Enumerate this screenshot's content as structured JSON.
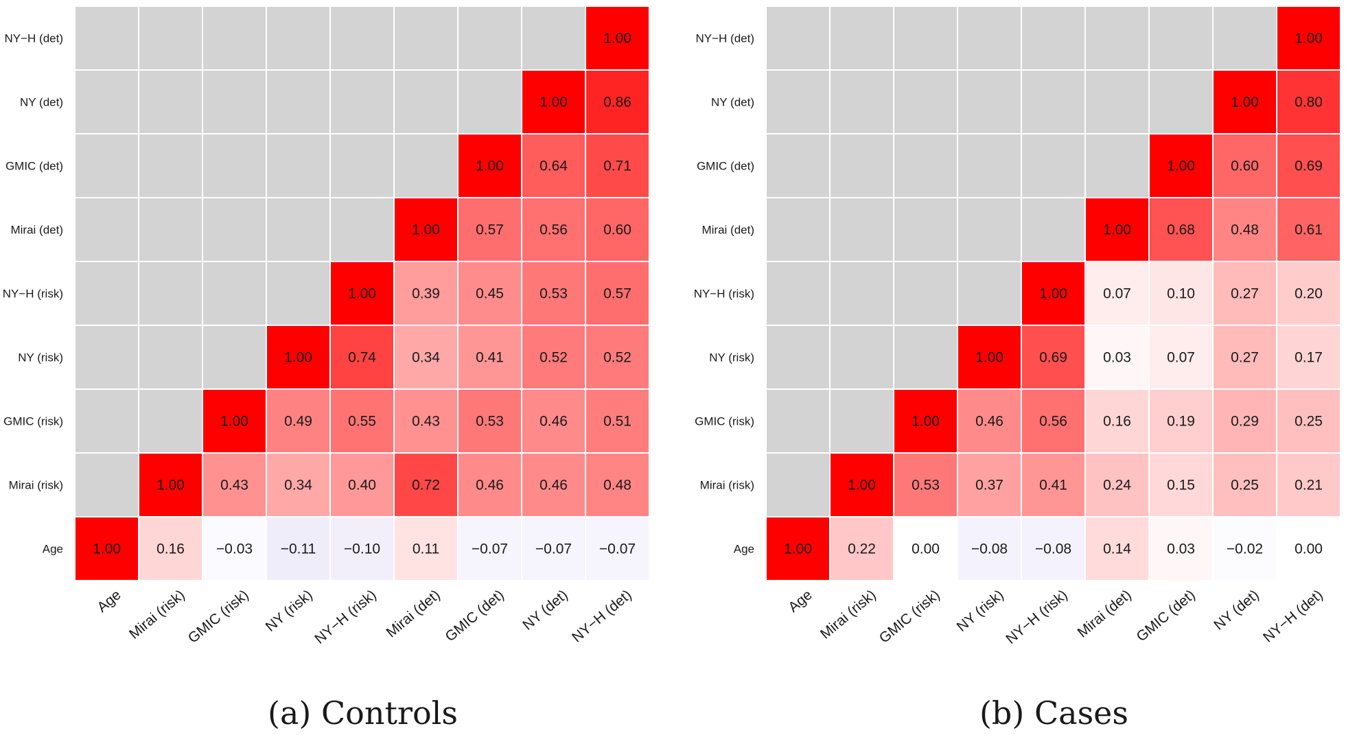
{
  "chart_data": [
    {
      "type": "heatmap",
      "caption": "(a) Controls",
      "variables": [
        "Age",
        "Mirai (risk)",
        "GMIC (risk)",
        "NY (risk)",
        "NY−H (risk)",
        "Mirai (det)",
        "GMIC (det)",
        "NY (det)",
        "NY−H (det)"
      ],
      "matrix_upper": [
        [
          "1.00",
          "0.16",
          "−0.03",
          "−0.11",
          "−0.10",
          "0.11",
          "−0.07",
          "−0.07",
          "−0.07"
        ],
        [
          null,
          "1.00",
          "0.43",
          "0.34",
          "0.40",
          "0.72",
          "0.46",
          "0.46",
          "0.48"
        ],
        [
          null,
          null,
          "1.00",
          "0.49",
          "0.55",
          "0.43",
          "0.53",
          "0.46",
          "0.51"
        ],
        [
          null,
          null,
          null,
          "1.00",
          "0.74",
          "0.34",
          "0.41",
          "0.52",
          "0.52"
        ],
        [
          null,
          null,
          null,
          null,
          "1.00",
          "0.39",
          "0.45",
          "0.53",
          "0.57"
        ],
        [
          null,
          null,
          null,
          null,
          null,
          "1.00",
          "0.57",
          "0.56",
          "0.60"
        ],
        [
          null,
          null,
          null,
          null,
          null,
          null,
          "1.00",
          "0.64",
          "0.71"
        ],
        [
          null,
          null,
          null,
          null,
          null,
          null,
          null,
          "1.00",
          "0.86"
        ],
        [
          null,
          null,
          null,
          null,
          null,
          null,
          null,
          null,
          "1.00"
        ]
      ],
      "color_scale": {
        "min": -1,
        "max": 1,
        "negative": "#7b5cd6",
        "zero": "#ffffff",
        "positive": "#ff0000",
        "masked": "#d3d3d3"
      }
    },
    {
      "type": "heatmap",
      "caption": "(b) Cases",
      "variables": [
        "Age",
        "Mirai (risk)",
        "GMIC (risk)",
        "NY (risk)",
        "NY−H (risk)",
        "Mirai (det)",
        "GMIC (det)",
        "NY (det)",
        "NY−H (det)"
      ],
      "matrix_upper": [
        [
          "1.00",
          "0.22",
          "0.00",
          "−0.08",
          "−0.08",
          "0.14",
          "0.03",
          "−0.02",
          "0.00"
        ],
        [
          null,
          "1.00",
          "0.53",
          "0.37",
          "0.41",
          "0.24",
          "0.15",
          "0.25",
          "0.21"
        ],
        [
          null,
          null,
          "1.00",
          "0.46",
          "0.56",
          "0.16",
          "0.19",
          "0.29",
          "0.25"
        ],
        [
          null,
          null,
          null,
          "1.00",
          "0.69",
          "0.03",
          "0.07",
          "0.27",
          "0.17"
        ],
        [
          null,
          null,
          null,
          null,
          "1.00",
          "0.07",
          "0.10",
          "0.27",
          "0.20"
        ],
        [
          null,
          null,
          null,
          null,
          null,
          "1.00",
          "0.68",
          "0.48",
          "0.61"
        ],
        [
          null,
          null,
          null,
          null,
          null,
          null,
          "1.00",
          "0.60",
          "0.69"
        ],
        [
          null,
          null,
          null,
          null,
          null,
          null,
          null,
          "1.00",
          "0.80"
        ],
        [
          null,
          null,
          null,
          null,
          null,
          null,
          null,
          null,
          "1.00"
        ]
      ],
      "color_scale": {
        "min": -1,
        "max": 1,
        "negative": "#7b5cd6",
        "zero": "#ffffff",
        "positive": "#ff0000",
        "masked": "#d3d3d3"
      }
    }
  ]
}
